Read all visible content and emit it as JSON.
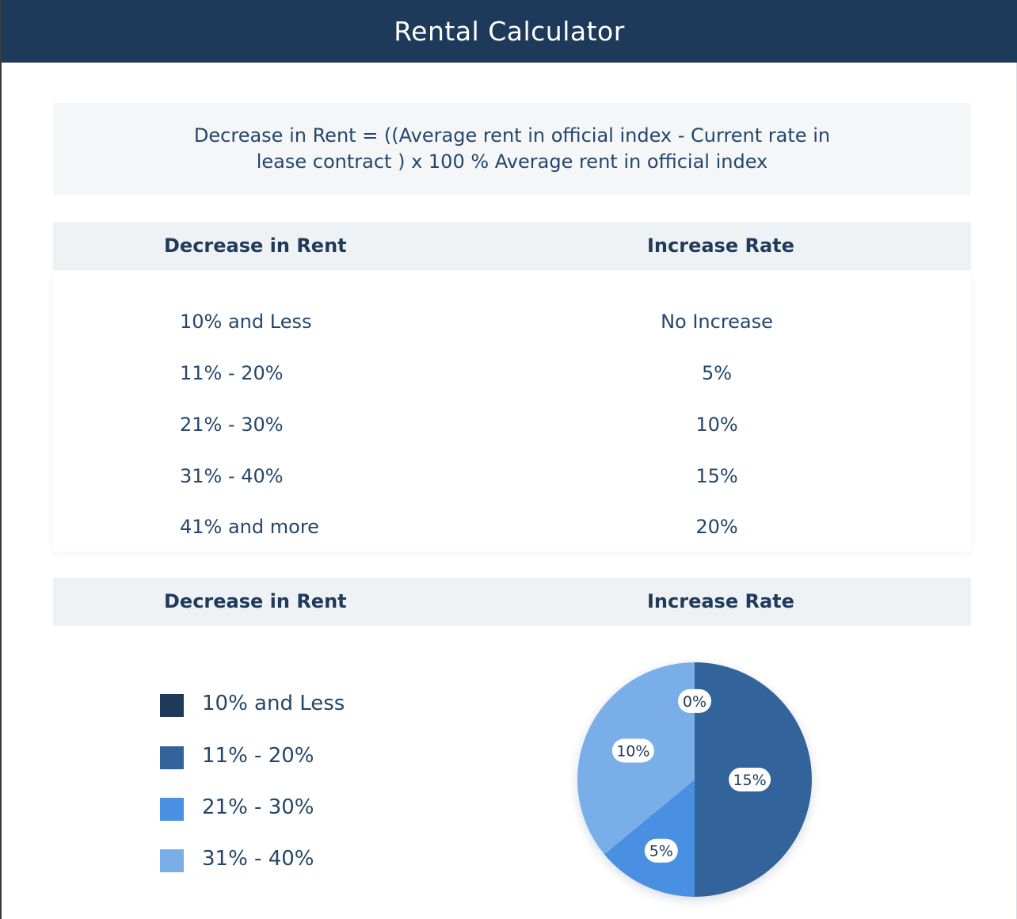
{
  "app": {
    "title": "Rental Calculator"
  },
  "formula": {
    "text": "Decrease in Rent = ((Average rent in official index - Current rate in lease contract ) x 100 % Average rent in official index"
  },
  "table": {
    "headers": [
      "Decrease in Rent",
      "Increase Rate"
    ],
    "rows": [
      {
        "decrease": "10% and Less",
        "increase": "No Increase"
      },
      {
        "decrease": "11% - 20%",
        "increase": "5%"
      },
      {
        "decrease": "21% - 30%",
        "increase": "10%"
      },
      {
        "decrease": "31% - 40%",
        "increase": "15%"
      },
      {
        "decrease": "41% and more",
        "increase": "20%"
      }
    ]
  },
  "chart_section": {
    "headers": [
      "Decrease in Rent",
      "Increase Rate"
    ]
  },
  "colors": {
    "header_bg": "#1e3a5a",
    "text": "#24466a"
  },
  "chart_data": {
    "type": "pie",
    "legend_position": "left",
    "categories": [
      "10% and Less",
      "11% - 20%",
      "21% - 30%",
      "31% - 40%"
    ],
    "colors": [
      "#1e3a5a",
      "#33639b",
      "#4a90e2",
      "#7aaee8"
    ],
    "slice_labels": [
      "0%",
      "15%",
      "5%",
      "10%"
    ],
    "slice_colors": [
      "#1e3a5a",
      "#33639b",
      "#4a90e2",
      "#7aaee8"
    ],
    "values": [
      0,
      50,
      14,
      36
    ]
  }
}
